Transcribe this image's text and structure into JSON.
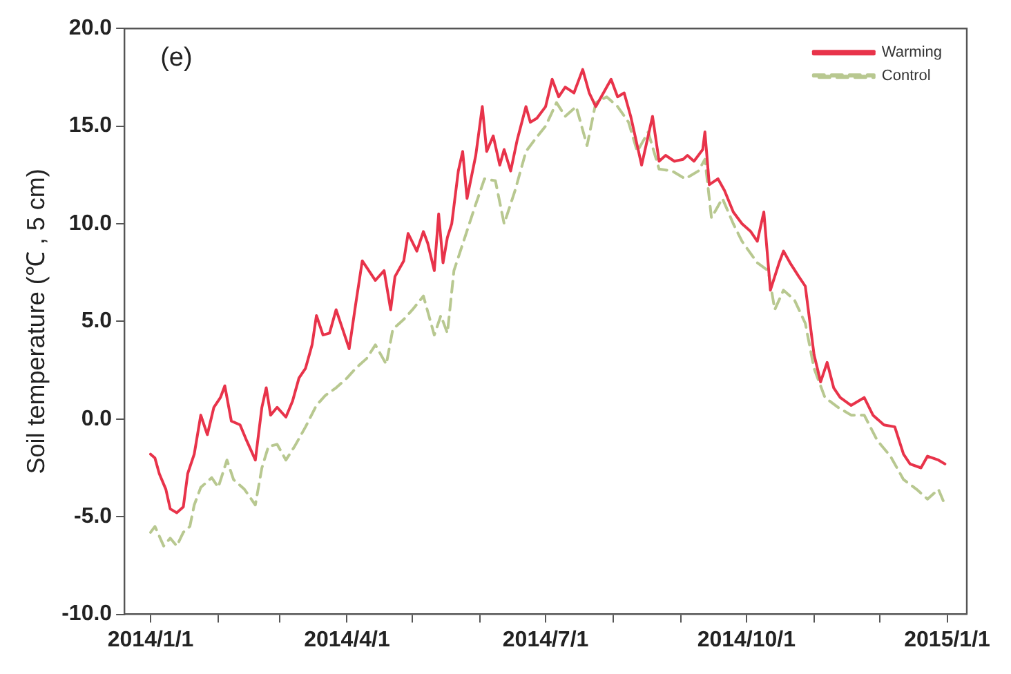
{
  "chart_data": {
    "type": "line",
    "ylabel": "Soil temperature (℃ , 5 cm)",
    "annotations": [
      "(e)"
    ],
    "xlim": [
      "2013-12-20",
      "2015-01-10"
    ],
    "xticks": [
      {
        "value": "2014-01-01",
        "label": "2014/1/1"
      },
      {
        "value": "2014-02-01",
        "label": null
      },
      {
        "value": "2014-03-01",
        "label": null
      },
      {
        "value": "2014-04-01",
        "label": "2014/4/1"
      },
      {
        "value": "2014-05-01",
        "label": null
      },
      {
        "value": "2014-06-01",
        "label": null
      },
      {
        "value": "2014-07-01",
        "label": "2014/7/1"
      },
      {
        "value": "2014-08-01",
        "label": null
      },
      {
        "value": "2014-09-01",
        "label": null
      },
      {
        "value": "2014-10-01",
        "label": "2014/10/1"
      },
      {
        "value": "2014-11-01",
        "label": null
      },
      {
        "value": "2014-12-01",
        "label": null
      },
      {
        "value": "2015-01-01",
        "label": "2015/1/1"
      }
    ],
    "ylim": [
      -10,
      20
    ],
    "yticks": [
      {
        "value": -10,
        "label": "-10.0"
      },
      {
        "value": -5,
        "label": "-5.0"
      },
      {
        "value": 0,
        "label": "0.0"
      },
      {
        "value": 5,
        "label": "5.0"
      },
      {
        "value": 10,
        "label": "10.0"
      },
      {
        "value": 15,
        "label": "15.0"
      },
      {
        "value": 20,
        "label": "20.0"
      }
    ],
    "grid": false,
    "legend": "top right",
    "marker": "none",
    "series": [
      {
        "name": "Warming",
        "color": "#e8334a",
        "line_style": "solid",
        "x": [
          "2014-01-01",
          "2014-01-03",
          "2014-01-05",
          "2014-01-08",
          "2014-01-10",
          "2014-01-13",
          "2014-01-16",
          "2014-01-18",
          "2014-01-21",
          "2014-01-24",
          "2014-01-27",
          "2014-01-30",
          "2014-02-02",
          "2014-02-04",
          "2014-02-07",
          "2014-02-11",
          "2014-02-14",
          "2014-02-18",
          "2014-02-21",
          "2014-02-23",
          "2014-02-25",
          "2014-02-28",
          "2014-03-04",
          "2014-03-07",
          "2014-03-10",
          "2014-03-13",
          "2014-03-16",
          "2014-03-18",
          "2014-03-21",
          "2014-03-24",
          "2014-03-27",
          "2014-03-30",
          "2014-04-02",
          "2014-04-05",
          "2014-04-08",
          "2014-04-11",
          "2014-04-14",
          "2014-04-18",
          "2014-04-21",
          "2014-04-23",
          "2014-04-27",
          "2014-04-29",
          "2014-05-03",
          "2014-05-06",
          "2014-05-08",
          "2014-05-11",
          "2014-05-13",
          "2014-05-15",
          "2014-05-17",
          "2014-05-19",
          "2014-05-22",
          "2014-05-24",
          "2014-05-26",
          "2014-05-30",
          "2014-06-02",
          "2014-06-04",
          "2014-06-07",
          "2014-06-10",
          "2014-06-12",
          "2014-06-15",
          "2014-06-18",
          "2014-06-22",
          "2014-06-24",
          "2014-06-27",
          "2014-07-01",
          "2014-07-04",
          "2014-07-07",
          "2014-07-10",
          "2014-07-14",
          "2014-07-18",
          "2014-07-21",
          "2014-07-24",
          "2014-07-28",
          "2014-07-31",
          "2014-08-03",
          "2014-08-06",
          "2014-08-09",
          "2014-08-12",
          "2014-08-14",
          "2014-08-19",
          "2014-08-22",
          "2014-08-25",
          "2014-08-29",
          "2014-09-02",
          "2014-09-04",
          "2014-09-07",
          "2014-09-11",
          "2014-09-12",
          "2014-09-14",
          "2014-09-18",
          "2014-09-21",
          "2014-09-25",
          "2014-09-29",
          "2014-10-03",
          "2014-10-06",
          "2014-10-09",
          "2014-10-12",
          "2014-10-16",
          "2014-10-18",
          "2014-10-21",
          "2014-10-25",
          "2014-10-28",
          "2014-11-01",
          "2014-11-04",
          "2014-11-07",
          "2014-11-10",
          "2014-11-13",
          "2014-11-18",
          "2014-11-24",
          "2014-11-28",
          "2014-12-03",
          "2014-12-08",
          "2014-12-12",
          "2014-12-15",
          "2014-12-20",
          "2014-12-23",
          "2014-12-28",
          "2014-12-31"
        ],
        "values": [
          -1.8,
          -2.0,
          -2.8,
          -3.6,
          -4.6,
          -4.8,
          -4.5,
          -2.8,
          -1.8,
          0.2,
          -0.8,
          0.6,
          1.1,
          1.7,
          -0.1,
          -0.3,
          -1.1,
          -2.1,
          0.6,
          1.6,
          0.2,
          0.6,
          0.1,
          0.9,
          2.1,
          2.6,
          3.8,
          5.3,
          4.3,
          4.4,
          5.6,
          4.6,
          3.6,
          5.9,
          8.1,
          7.6,
          7.1,
          7.6,
          5.6,
          7.3,
          8.1,
          9.5,
          8.6,
          9.6,
          9.0,
          7.6,
          10.5,
          8.0,
          9.3,
          10.0,
          12.7,
          13.7,
          11.3,
          13.5,
          16.0,
          13.7,
          14.5,
          13.0,
          13.8,
          12.7,
          14.3,
          16.0,
          15.2,
          15.4,
          16.0,
          17.4,
          16.5,
          17.0,
          16.7,
          17.9,
          16.7,
          16.0,
          16.8,
          17.4,
          16.5,
          16.7,
          15.5,
          14.0,
          13.0,
          15.5,
          13.2,
          13.5,
          13.2,
          13.3,
          13.5,
          13.2,
          13.8,
          14.7,
          12.0,
          12.3,
          11.7,
          10.6,
          10.0,
          9.6,
          9.1,
          10.6,
          6.6,
          8.0,
          8.6,
          8.0,
          7.3,
          6.8,
          3.3,
          1.9,
          2.9,
          1.6,
          1.1,
          0.7,
          1.1,
          0.2,
          -0.3,
          -0.4,
          -1.8,
          -2.3,
          -2.5,
          -1.9,
          -2.1,
          -2.3
        ]
      },
      {
        "name": "Control",
        "color": "#b8c890",
        "line_style": "dashed",
        "x": [
          "2014-01-01",
          "2014-01-03",
          "2014-01-07",
          "2014-01-10",
          "2014-01-13",
          "2014-01-16",
          "2014-01-19",
          "2014-01-21",
          "2014-01-24",
          "2014-01-29",
          "2014-02-01",
          "2014-02-05",
          "2014-02-08",
          "2014-02-13",
          "2014-02-18",
          "2014-02-21",
          "2014-02-24",
          "2014-02-28",
          "2014-03-04",
          "2014-03-08",
          "2014-03-13",
          "2014-03-18",
          "2014-03-22",
          "2014-03-27",
          "2014-04-01",
          "2014-04-05",
          "2014-04-10",
          "2014-04-14",
          "2014-04-19",
          "2014-04-22",
          "2014-04-27",
          "2014-05-01",
          "2014-05-06",
          "2014-05-11",
          "2014-05-14",
          "2014-05-17",
          "2014-05-20",
          "2014-05-25",
          "2014-05-30",
          "2014-06-03",
          "2014-06-08",
          "2014-06-12",
          "2014-06-17",
          "2014-06-22",
          "2014-06-26",
          "2014-07-01",
          "2014-07-06",
          "2014-07-10",
          "2014-07-15",
          "2014-07-20",
          "2014-07-24",
          "2014-07-29",
          "2014-08-03",
          "2014-08-08",
          "2014-08-12",
          "2014-08-17",
          "2014-08-22",
          "2014-08-28",
          "2014-09-03",
          "2014-09-09",
          "2014-09-12",
          "2014-09-15",
          "2014-09-20",
          "2014-09-25",
          "2014-09-29",
          "2014-10-06",
          "2014-10-11",
          "2014-10-14",
          "2014-10-18",
          "2014-10-23",
          "2014-10-28",
          "2014-11-01",
          "2014-11-06",
          "2014-11-12",
          "2014-11-18",
          "2014-11-24",
          "2014-11-30",
          "2014-12-06",
          "2014-12-12",
          "2014-12-18",
          "2014-12-23",
          "2014-12-28",
          "2014-12-31"
        ],
        "values": [
          -5.8,
          -5.5,
          -6.5,
          -6.1,
          -6.5,
          -5.8,
          -5.5,
          -4.4,
          -3.5,
          -3.0,
          -3.5,
          -2.1,
          -3.1,
          -3.6,
          -4.4,
          -2.5,
          -1.4,
          -1.3,
          -2.1,
          -1.4,
          -0.4,
          0.7,
          1.2,
          1.6,
          2.1,
          2.6,
          3.1,
          3.8,
          2.8,
          4.6,
          5.1,
          5.6,
          6.3,
          4.3,
          5.3,
          4.4,
          7.6,
          9.3,
          11.0,
          12.3,
          12.2,
          10.0,
          11.7,
          13.7,
          14.3,
          15.0,
          16.2,
          15.5,
          16.0,
          14.0,
          16.2,
          16.5,
          16.0,
          15.2,
          13.7,
          14.7,
          12.8,
          12.7,
          12.3,
          12.7,
          13.3,
          10.3,
          11.3,
          10.0,
          9.1,
          8.0,
          7.6,
          5.6,
          6.6,
          6.1,
          4.9,
          2.6,
          1.1,
          0.6,
          0.2,
          0.2,
          -1.1,
          -1.9,
          -3.1,
          -3.6,
          -4.1,
          -3.6,
          -4.4
        ]
      }
    ]
  }
}
